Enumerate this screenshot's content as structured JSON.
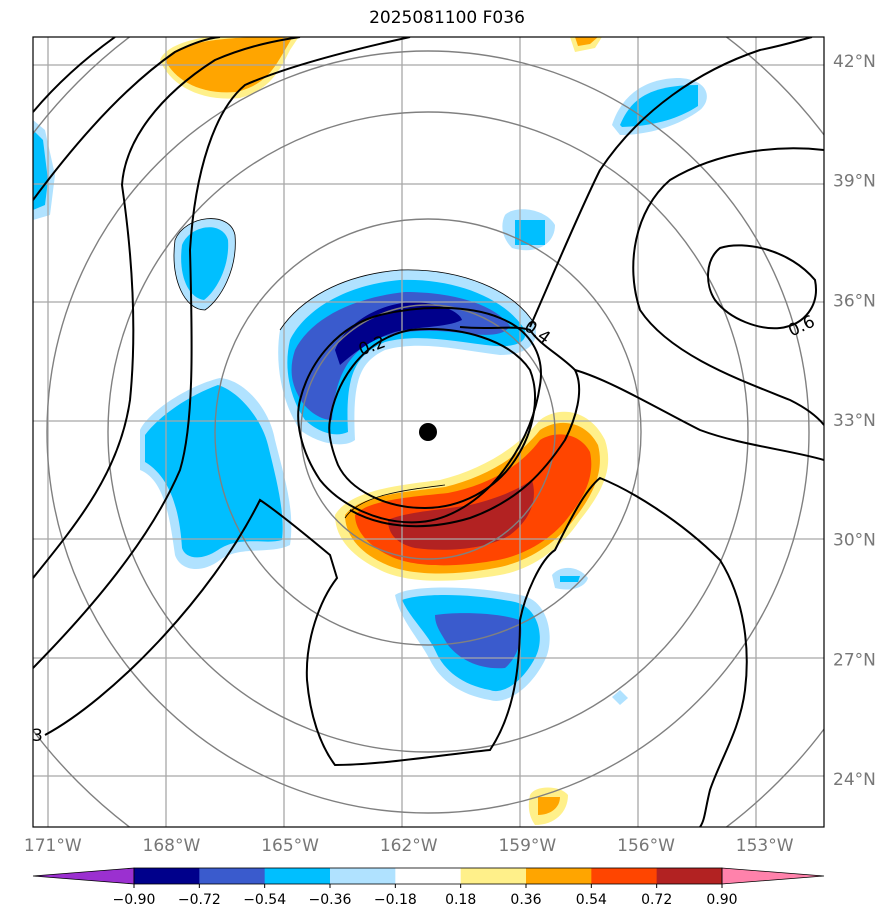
{
  "title": "2025081100 F036",
  "chart_data": {
    "type": "heatmap",
    "title": "2025081100 F036",
    "x_tick_labels": [
      "171°W",
      "168°W",
      "165°W",
      "162°W",
      "159°W",
      "156°W",
      "153°W"
    ],
    "y_tick_labels": [
      "42°N",
      "39°N",
      "36°N",
      "33°N",
      "30°N",
      "27°N",
      "24°N"
    ],
    "longitudes": [
      -171,
      -168,
      -165,
      -162,
      -159,
      -156,
      -153
    ],
    "latitudes": [
      42,
      39,
      36,
      33,
      30,
      27,
      24
    ],
    "xlim": [
      -171.5,
      -151.5
    ],
    "ylim": [
      22.8,
      42.6
    ],
    "grid": true,
    "center_marker": {
      "lon": -161.7,
      "lat": 32.7
    },
    "range_rings": 5,
    "colorbar": {
      "extend": "both",
      "tick_labels": [
        "−0.90",
        "−0.72",
        "−0.54",
        "−0.36",
        "−0.18",
        "0.18",
        "0.36",
        "0.54",
        "0.72",
        "0.90"
      ],
      "levels": [
        -0.9,
        -0.72,
        -0.54,
        -0.36,
        -0.18,
        0.18,
        0.36,
        0.54,
        0.72,
        0.9
      ],
      "colors": [
        "#9b30d0",
        "#00008b",
        "#3a5bcd",
        "#00bfff",
        "#b0e2ff",
        "#ffffff",
        "#fff08a",
        "#ffa500",
        "#ff4500",
        "#b22222",
        "#ff82ab"
      ]
    },
    "contour_labels": [
      "0.2",
      "0.4",
      "0.6",
      "3"
    ],
    "contour_levels": [
      0.2,
      0.4,
      0.6
    ]
  }
}
